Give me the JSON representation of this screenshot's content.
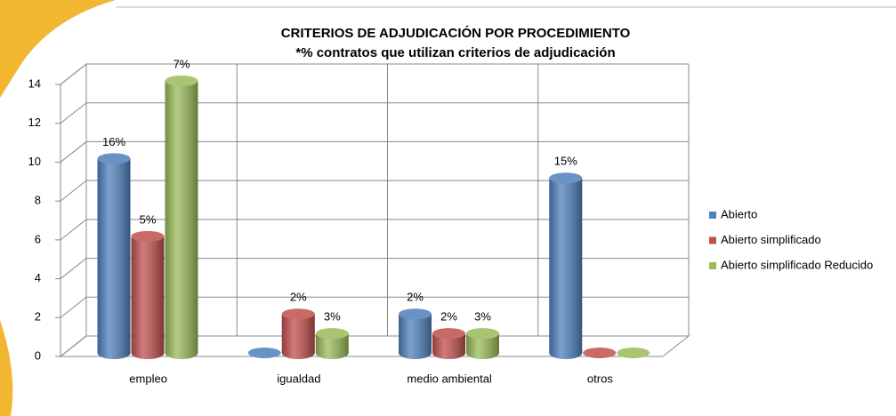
{
  "chart_data": {
    "type": "bar",
    "title": "CRITERIOS DE ADJUDICACIÓN POR PROCEDIMIENTO",
    "subtitle": "*% contratos que utilizan criterios de adjudicación",
    "categories": [
      "empleo",
      "igualdad",
      "medio ambiental",
      "otros"
    ],
    "series": [
      {
        "name": "Abierto",
        "color": "#4f81bd",
        "values": [
          10,
          0,
          2,
          9
        ],
        "percent_labels": [
          "16%",
          null,
          "2%",
          "15%"
        ]
      },
      {
        "name": "Abierto simplificado",
        "color": "#c0504d",
        "values": [
          6,
          2,
          1,
          0
        ],
        "percent_labels": [
          "5%",
          "2%",
          "2%",
          null
        ]
      },
      {
        "name": "Abierto simplificado Reducido",
        "color": "#9bbb59",
        "values": [
          14,
          1,
          1,
          0
        ],
        "percent_labels": [
          "7%",
          "3%",
          "3%",
          null
        ]
      }
    ],
    "ylim": [
      0,
      14
    ],
    "yticks": [
      0,
      2,
      4,
      6,
      8,
      10,
      12,
      14
    ],
    "grid": true,
    "legend": "right"
  }
}
